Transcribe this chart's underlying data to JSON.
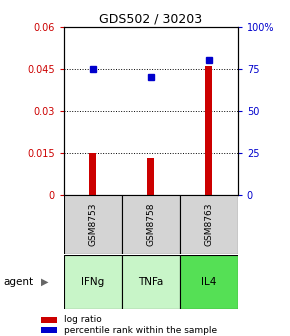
{
  "title": "GDS502 / 30203",
  "samples": [
    "GSM8753",
    "GSM8758",
    "GSM8763"
  ],
  "agents": [
    "IFNg",
    "TNFa",
    "IL4"
  ],
  "log_ratios": [
    0.0148,
    0.013,
    0.046
  ],
  "percentile_ranks": [
    75.0,
    70.0,
    80.0
  ],
  "agent_colors": [
    "#c8f5c8",
    "#c8f5c8",
    "#55e055"
  ],
  "sample_bg_color": "#d4d4d4",
  "bar_color": "#cc0000",
  "dot_color": "#0000cc",
  "left_ylim": [
    0,
    0.06
  ],
  "right_ylim": [
    0,
    100
  ],
  "left_yticks": [
    0,
    0.015,
    0.03,
    0.045,
    0.06
  ],
  "left_yticklabels": [
    "0",
    "0.015",
    "0.03",
    "0.045",
    "0.06"
  ],
  "right_yticks": [
    0,
    25,
    50,
    75,
    100
  ],
  "right_yticklabels": [
    "0",
    "25",
    "50",
    "75",
    "100%"
  ],
  "legend_log_ratio": "log ratio",
  "legend_percentile": "percentile rank within the sample",
  "agent_label": "agent"
}
